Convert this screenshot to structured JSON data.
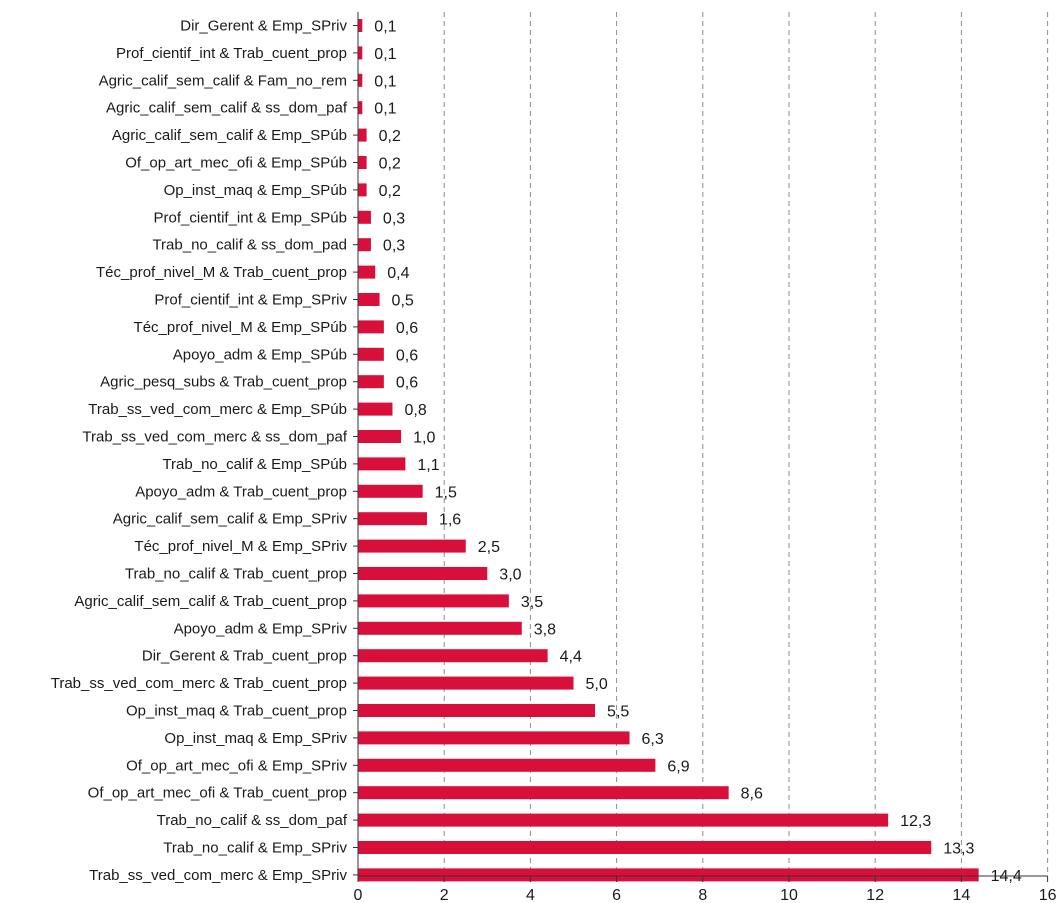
{
  "chart_data": {
    "type": "bar",
    "orientation": "horizontal",
    "title": "",
    "xlabel": "",
    "ylabel": "",
    "xlim": [
      0,
      16
    ],
    "x_ticks": [
      0,
      2,
      4,
      6,
      8,
      10,
      12,
      14,
      16
    ],
    "grid": "vertical dashed",
    "legend": "none",
    "bar_color": "#d80f3a",
    "categories": [
      "Dir_Gerent & Emp_SPriv",
      "Prof_cientif_int & Trab_cuent_prop",
      "Agric_calif_sem_calif & Fam_no_rem",
      "Agric_calif_sem_calif & ss_dom_paf",
      "Agric_calif_sem_calif & Emp_SPúb",
      "Of_op_art_mec_ofi & Emp_SPúb",
      "Op_inst_maq & Emp_SPúb",
      "Prof_cientif_int & Emp_SPúb",
      "Trab_no_calif & ss_dom_pad",
      "Téc_prof_nivel_M & Trab_cuent_prop",
      "Prof_cientif_int & Emp_SPriv",
      "Téc_prof_nivel_M & Emp_SPúb",
      "Apoyo_adm & Emp_SPúb",
      "Agric_pesq_subs & Trab_cuent_prop",
      "Trab_ss_ved_com_merc & Emp_SPúb",
      "Trab_ss_ved_com_merc & ss_dom_paf",
      "Trab_no_calif & Emp_SPúb",
      "Apoyo_adm & Trab_cuent_prop",
      "Agric_calif_sem_calif & Emp_SPriv",
      "Téc_prof_nivel_M & Emp_SPriv",
      "Trab_no_calif & Trab_cuent_prop",
      "Agric_calif_sem_calif & Trab_cuent_prop",
      "Apoyo_adm & Emp_SPriv",
      "Dir_Gerent & Trab_cuent_prop",
      "Trab_ss_ved_com_merc & Trab_cuent_prop",
      "Op_inst_maq & Trab_cuent_prop",
      "Op_inst_maq & Emp_SPriv",
      "Of_op_art_mec_ofi & Emp_SPriv",
      "Of_op_art_mec_ofi & Trab_cuent_prop",
      "Trab_no_calif & ss_dom_paf",
      "Trab_no_calif & Emp_SPriv",
      "Trab_ss_ved_com_merc & Emp_SPriv"
    ],
    "values": [
      0.1,
      0.1,
      0.1,
      0.1,
      0.2,
      0.2,
      0.2,
      0.3,
      0.3,
      0.4,
      0.5,
      0.6,
      0.6,
      0.6,
      0.8,
      1.0,
      1.1,
      1.5,
      1.6,
      2.5,
      3.0,
      3.5,
      3.8,
      4.4,
      5.0,
      5.5,
      6.3,
      6.9,
      8.6,
      12.3,
      13.3,
      14.4
    ],
    "value_labels": [
      "0,1",
      "0,1",
      "0,1",
      "0,1",
      "0,2",
      "0,2",
      "0,2",
      "0,3",
      "0,3",
      "0,4",
      "0,5",
      "0,6",
      "0,6",
      "0,6",
      "0,8",
      "1,0",
      "1,1",
      "1,5",
      "1,6",
      "2,5",
      "3,0",
      "3,5",
      "3,8",
      "4,4",
      "5,0",
      "5,5",
      "6,3",
      "6,9",
      "8,6",
      "12,3",
      "13,3",
      "14,4"
    ]
  }
}
